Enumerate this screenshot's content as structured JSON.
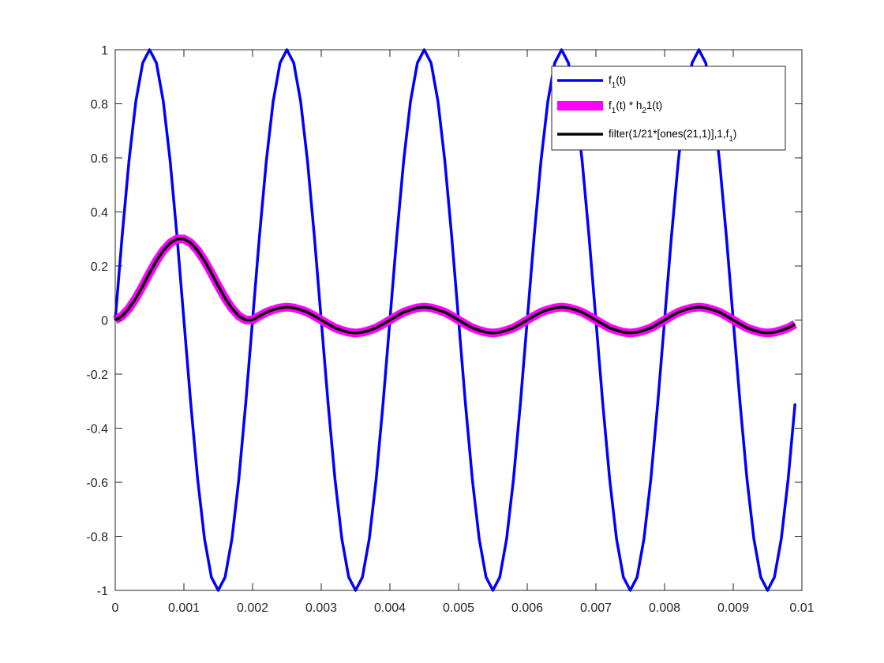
{
  "chart_data": {
    "type": "line",
    "title": "",
    "xlabel": "",
    "ylabel": "",
    "xlim": [
      0,
      0.01
    ],
    "ylim": [
      -1,
      1
    ],
    "grid": false,
    "legend_position": "top-right",
    "x_ticks": [
      {
        "value": 0,
        "label": "0"
      },
      {
        "value": 0.001,
        "label": "0.001"
      },
      {
        "value": 0.002,
        "label": "0.002"
      },
      {
        "value": 0.003,
        "label": "0.003"
      },
      {
        "value": 0.004,
        "label": "0.004"
      },
      {
        "value": 0.005,
        "label": "0.005"
      },
      {
        "value": 0.006,
        "label": "0.006"
      },
      {
        "value": 0.007,
        "label": "0.007"
      },
      {
        "value": 0.008,
        "label": "0.008"
      },
      {
        "value": 0.009,
        "label": "0.009"
      },
      {
        "value": 0.01,
        "label": "0.01"
      }
    ],
    "y_ticks": [
      {
        "value": 1,
        "label": "1"
      },
      {
        "value": 0.8,
        "label": "0.8"
      },
      {
        "value": 0.6,
        "label": "0.6"
      },
      {
        "value": 0.4,
        "label": "0.4"
      },
      {
        "value": 0.2,
        "label": "0.2"
      },
      {
        "value": 0,
        "label": "0"
      },
      {
        "value": -0.2,
        "label": "-0.2"
      },
      {
        "value": -0.4,
        "label": "-0.4"
      },
      {
        "value": -0.6,
        "label": "-0.6"
      },
      {
        "value": -0.8,
        "label": "-0.8"
      },
      {
        "value": -1,
        "label": "-1"
      }
    ],
    "series": [
      {
        "key": "f1",
        "legend": {
          "main": "f",
          "sub": "1",
          "rest": "(t)"
        },
        "color": "#0000ff",
        "x": [
          0,
          0.0001,
          0.0002,
          0.0003,
          0.0004,
          0.0005,
          0.0006,
          0.0007,
          0.0008,
          0.0009,
          0.001,
          0.0011,
          0.0012,
          0.0013,
          0.0014,
          0.0015,
          0.0016,
          0.0017,
          0.0018,
          0.0019,
          0.002,
          0.0021,
          0.0022,
          0.0023,
          0.0024,
          0.0025,
          0.0026,
          0.0027,
          0.0028,
          0.0029,
          0.003,
          0.0031,
          0.0032,
          0.0033,
          0.0034,
          0.0035,
          0.0036,
          0.0037,
          0.0038,
          0.0039,
          0.004,
          0.0041,
          0.0042,
          0.0043,
          0.0044,
          0.0045,
          0.0046,
          0.0047,
          0.0048,
          0.0049,
          0.005,
          0.0051,
          0.0052,
          0.0053,
          0.0054,
          0.0055,
          0.0056,
          0.0057,
          0.0058,
          0.0059,
          0.006,
          0.0061,
          0.0062,
          0.0063,
          0.0064,
          0.0065,
          0.0066,
          0.0067,
          0.0068,
          0.0069,
          0.007,
          0.0071,
          0.0072,
          0.0073,
          0.0074,
          0.0075,
          0.0076,
          0.0077,
          0.0078,
          0.0079,
          0.008,
          0.0081,
          0.0082,
          0.0083,
          0.0084,
          0.0085,
          0.0086,
          0.0087,
          0.0088,
          0.0089,
          0.009,
          0.0091,
          0.0092,
          0.0093,
          0.0094,
          0.0095,
          0.0096,
          0.0097,
          0.0098,
          0.0099
        ],
        "y": [
          0,
          0.309,
          0.588,
          0.809,
          0.951,
          1,
          0.951,
          0.809,
          0.588,
          0.309,
          0,
          -0.309,
          -0.588,
          -0.809,
          -0.951,
          -1,
          -0.951,
          -0.809,
          -0.588,
          -0.309,
          0,
          0.309,
          0.588,
          0.809,
          0.951,
          1,
          0.951,
          0.809,
          0.588,
          0.309,
          0,
          -0.309,
          -0.588,
          -0.809,
          -0.951,
          -1,
          -0.951,
          -0.809,
          -0.588,
          -0.309,
          0,
          0.309,
          0.588,
          0.809,
          0.951,
          1,
          0.951,
          0.809,
          0.588,
          0.309,
          0,
          -0.309,
          -0.588,
          -0.809,
          -0.951,
          -1,
          -0.951,
          -0.809,
          -0.588,
          -0.309,
          0,
          0.309,
          0.588,
          0.809,
          0.951,
          1,
          0.951,
          0.809,
          0.588,
          0.309,
          0,
          -0.309,
          -0.588,
          -0.809,
          -0.951,
          -1,
          -0.951,
          -0.809,
          -0.588,
          -0.309,
          0,
          0.309,
          0.588,
          0.809,
          0.951,
          1,
          0.951,
          0.809,
          0.588,
          0.309,
          0,
          -0.309,
          -0.588,
          -0.809,
          -0.951,
          -1,
          -0.951,
          -0.809,
          -0.588,
          -0.309
        ]
      },
      {
        "key": "conv",
        "legend": {
          "main": "f",
          "sub": "1",
          "rest": "(t) * h",
          "sub2": "2",
          "rest2": "1(t)"
        },
        "color": "#ff00ff",
        "x": [
          0,
          0.0001,
          0.0002,
          0.0003,
          0.0004,
          0.0005,
          0.0006,
          0.0007,
          0.0008,
          0.0009,
          0.001,
          0.0011,
          0.0012,
          0.0013,
          0.0014,
          0.0015,
          0.0016,
          0.0017,
          0.0018,
          0.0019,
          0.002,
          0.0021,
          0.0022,
          0.0023,
          0.0024,
          0.0025,
          0.0026,
          0.0027,
          0.0028,
          0.0029,
          0.003,
          0.0031,
          0.0032,
          0.0033,
          0.0034,
          0.0035,
          0.0036,
          0.0037,
          0.0038,
          0.0039,
          0.004,
          0.0041,
          0.0042,
          0.0043,
          0.0044,
          0.0045,
          0.0046,
          0.0047,
          0.0048,
          0.0049,
          0.005,
          0.0051,
          0.0052,
          0.0053,
          0.0054,
          0.0055,
          0.0056,
          0.0057,
          0.0058,
          0.0059,
          0.006,
          0.0061,
          0.0062,
          0.0063,
          0.0064,
          0.0065,
          0.0066,
          0.0067,
          0.0068,
          0.0069,
          0.007,
          0.0071,
          0.0072,
          0.0073,
          0.0074,
          0.0075,
          0.0076,
          0.0077,
          0.0078,
          0.0079,
          0.008,
          0.0081,
          0.0082,
          0.0083,
          0.0084,
          0.0085,
          0.0086,
          0.0087,
          0.0088,
          0.0089,
          0.009,
          0.0091,
          0.0092,
          0.0093,
          0.0094,
          0.0095,
          0.0096,
          0.0097,
          0.0098,
          0.0099
        ],
        "y": [
          0,
          0.015,
          0.043,
          0.081,
          0.126,
          0.174,
          0.219,
          0.257,
          0.285,
          0.3,
          0.3,
          0.285,
          0.257,
          0.219,
          0.174,
          0.126,
          0.081,
          0.043,
          0.015,
          0,
          0,
          0.015,
          0.029,
          0.038,
          0.045,
          0.048,
          0.045,
          0.038,
          0.029,
          0.015,
          0,
          -0.015,
          -0.029,
          -0.038,
          -0.045,
          -0.048,
          -0.045,
          -0.038,
          -0.029,
          -0.015,
          0,
          0.015,
          0.029,
          0.038,
          0.045,
          0.048,
          0.045,
          0.038,
          0.029,
          0.015,
          0,
          -0.015,
          -0.029,
          -0.038,
          -0.045,
          -0.048,
          -0.045,
          -0.038,
          -0.029,
          -0.015,
          0,
          0.015,
          0.029,
          0.038,
          0.045,
          0.048,
          0.045,
          0.038,
          0.029,
          0.015,
          0,
          -0.015,
          -0.029,
          -0.038,
          -0.045,
          -0.048,
          -0.045,
          -0.038,
          -0.029,
          -0.015,
          0,
          0.015,
          0.029,
          0.038,
          0.045,
          0.048,
          0.045,
          0.038,
          0.029,
          0.015,
          0,
          -0.015,
          -0.029,
          -0.038,
          -0.045,
          -0.048,
          -0.045,
          -0.038,
          -0.029,
          -0.015
        ]
      },
      {
        "key": "filter",
        "legend": {
          "main": "filter(1/21*[ones(21,1)],1,f",
          "sub": "1",
          "rest": ")"
        },
        "color": "#000000",
        "x": [
          0,
          0.0001,
          0.0002,
          0.0003,
          0.0004,
          0.0005,
          0.0006,
          0.0007,
          0.0008,
          0.0009,
          0.001,
          0.0011,
          0.0012,
          0.0013,
          0.0014,
          0.0015,
          0.0016,
          0.0017,
          0.0018,
          0.0019,
          0.002,
          0.0021,
          0.0022,
          0.0023,
          0.0024,
          0.0025,
          0.0026,
          0.0027,
          0.0028,
          0.0029,
          0.003,
          0.0031,
          0.0032,
          0.0033,
          0.0034,
          0.0035,
          0.0036,
          0.0037,
          0.0038,
          0.0039,
          0.004,
          0.0041,
          0.0042,
          0.0043,
          0.0044,
          0.0045,
          0.0046,
          0.0047,
          0.0048,
          0.0049,
          0.005,
          0.0051,
          0.0052,
          0.0053,
          0.0054,
          0.0055,
          0.0056,
          0.0057,
          0.0058,
          0.0059,
          0.006,
          0.0061,
          0.0062,
          0.0063,
          0.0064,
          0.0065,
          0.0066,
          0.0067,
          0.0068,
          0.0069,
          0.007,
          0.0071,
          0.0072,
          0.0073,
          0.0074,
          0.0075,
          0.0076,
          0.0077,
          0.0078,
          0.0079,
          0.008,
          0.0081,
          0.0082,
          0.0083,
          0.0084,
          0.0085,
          0.0086,
          0.0087,
          0.0088,
          0.0089,
          0.009,
          0.0091,
          0.0092,
          0.0093,
          0.0094,
          0.0095,
          0.0096,
          0.0097,
          0.0098,
          0.0099
        ],
        "y": [
          0,
          0.015,
          0.043,
          0.081,
          0.126,
          0.174,
          0.219,
          0.257,
          0.285,
          0.3,
          0.3,
          0.285,
          0.257,
          0.219,
          0.174,
          0.126,
          0.081,
          0.043,
          0.015,
          0,
          0,
          0.015,
          0.029,
          0.038,
          0.045,
          0.048,
          0.045,
          0.038,
          0.029,
          0.015,
          0,
          -0.015,
          -0.029,
          -0.038,
          -0.045,
          -0.048,
          -0.045,
          -0.038,
          -0.029,
          -0.015,
          0,
          0.015,
          0.029,
          0.038,
          0.045,
          0.048,
          0.045,
          0.038,
          0.029,
          0.015,
          0,
          -0.015,
          -0.029,
          -0.038,
          -0.045,
          -0.048,
          -0.045,
          -0.038,
          -0.029,
          -0.015,
          0,
          0.015,
          0.029,
          0.038,
          0.045,
          0.048,
          0.045,
          0.038,
          0.029,
          0.015,
          0,
          -0.015,
          -0.029,
          -0.038,
          -0.045,
          -0.048,
          -0.045,
          -0.038,
          -0.029,
          -0.015,
          0,
          0.015,
          0.029,
          0.038,
          0.045,
          0.048,
          0.045,
          0.038,
          0.029,
          0.015,
          0,
          -0.015,
          -0.029,
          -0.038,
          -0.045,
          -0.048,
          -0.045,
          -0.038,
          -0.029,
          -0.015
        ]
      }
    ]
  }
}
